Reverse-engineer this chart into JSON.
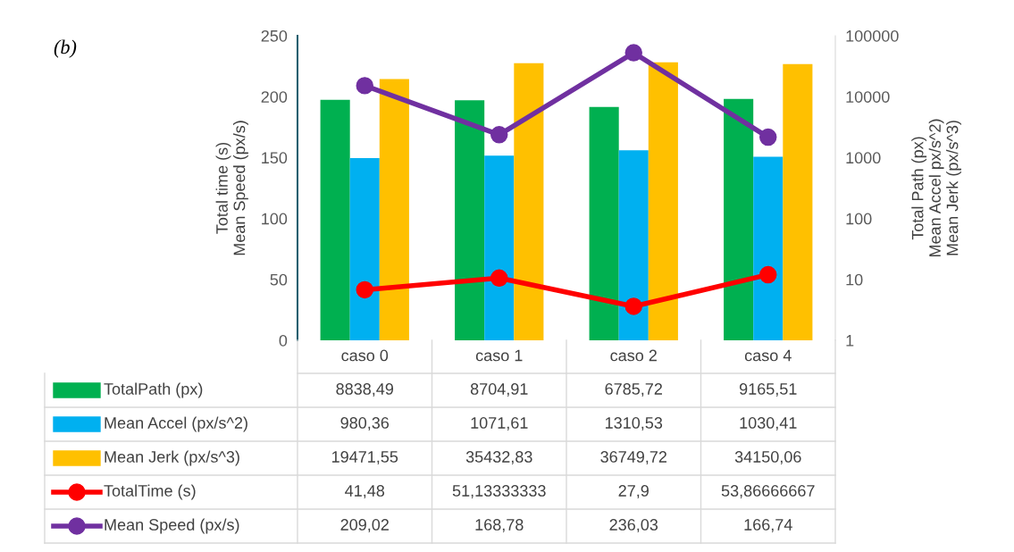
{
  "chart_data": {
    "type": "bar",
    "title": "(b)",
    "ylabel": "Total time (s)\nMean Speed (px/s)",
    "y2label": "Total Path (px)\nMean Accel px/s^2)\nMean Jerk (px/s^3)",
    "categories": [
      "caso 0",
      "caso 1",
      "caso 2",
      "caso 4"
    ],
    "series": [
      {
        "name": "TotalPath (px)",
        "axis": "y2",
        "color": "#00b050",
        "values": [
          8838.49,
          8704.91,
          6785.72,
          9165.51
        ],
        "value_labels": [
          "8838,49",
          "8704,91",
          "6785,72",
          "9165,51"
        ]
      },
      {
        "name": "Mean Accel (px/s^2)",
        "axis": "y2",
        "color": "#00b0f0",
        "values": [
          980.36,
          1071.61,
          1310.53,
          1030.41
        ],
        "value_labels": [
          "980,36",
          "1071,61",
          "1310,53",
          "1030,41"
        ]
      },
      {
        "name": "Mean Jerk (px/s^3)",
        "axis": "y2",
        "color": "#ffc000",
        "values": [
          19471.55,
          35432.83,
          36749.72,
          34150.06
        ],
        "value_labels": [
          "19471,55",
          "35432,83",
          "36749,72",
          "34150,06"
        ]
      },
      {
        "name": "TotalTime (s)",
        "type": "line",
        "color": "#ff0000",
        "values": [
          41.48,
          51.13333333,
          27.9,
          53.86666667
        ],
        "value_labels": [
          "41,48",
          "51,13333333",
          "27,9",
          "53,86666667"
        ]
      },
      {
        "name": "Mean Speed (px/s)",
        "type": "line",
        "color": "#7030a0",
        "values": [
          209.02,
          168.78,
          236.03,
          166.74
        ],
        "value_labels": [
          "209,02",
          "168,78",
          "236,03",
          "166,74"
        ]
      }
    ],
    "ylim": [
      0,
      250
    ],
    "yticks": [
      0,
      50,
      100,
      150,
      200,
      250
    ],
    "y2lim": [
      1,
      100000
    ],
    "y2ticks": [
      1,
      10,
      100,
      1000,
      10000,
      100000
    ],
    "log": "y2",
    "marker": "circle",
    "line_style": "solid",
    "grid": false,
    "legend": "bottom"
  }
}
